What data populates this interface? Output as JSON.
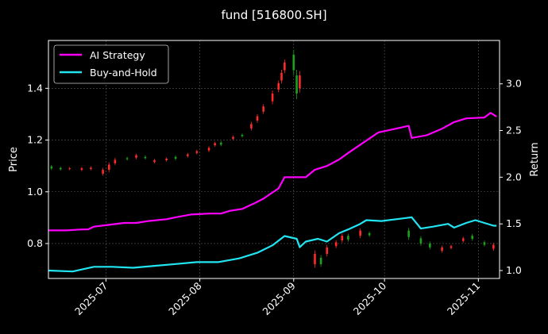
{
  "chart_data": {
    "type": "line",
    "title": "fund [516800.SH]",
    "ylabel_left": "Price",
    "ylabel_right": "Return",
    "xlabel": "",
    "x_range": [
      "2025-06-12",
      "2025-11-08"
    ],
    "ylim_left": [
      0.665,
      1.585
    ],
    "ylim_right": [
      0.915,
      3.465
    ],
    "x_ticks": [
      "2025-07",
      "2025-08",
      "2025-09",
      "2025-10",
      "2025-11"
    ],
    "y_ticks_left": [
      "0.8",
      "1.0",
      "1.2",
      "1.4"
    ],
    "y_ticks_right": [
      "1.0",
      "1.5",
      "2.0",
      "2.5",
      "3.0"
    ],
    "grid": true,
    "legend_position": "top-left",
    "colors": {
      "ai": "#ff00ff",
      "bh": "#22e5f2",
      "up": "#ff2a2a",
      "down": "#1aa31a"
    },
    "series": [
      {
        "name": "AI Strategy",
        "axis": "right",
        "points": [
          [
            "2025-06-12",
            1.43
          ],
          [
            "2025-06-18",
            1.43
          ],
          [
            "2025-06-23",
            1.44
          ],
          [
            "2025-06-25",
            1.44
          ],
          [
            "2025-06-27",
            1.47
          ],
          [
            "2025-07-02",
            1.49
          ],
          [
            "2025-07-07",
            1.51
          ],
          [
            "2025-07-11",
            1.51
          ],
          [
            "2025-07-15",
            1.53
          ],
          [
            "2025-07-21",
            1.55
          ],
          [
            "2025-07-24",
            1.57
          ],
          [
            "2025-07-29",
            1.6
          ],
          [
            "2025-08-04",
            1.61
          ],
          [
            "2025-08-08",
            1.61
          ],
          [
            "2025-08-11",
            1.64
          ],
          [
            "2025-08-15",
            1.66
          ],
          [
            "2025-08-19",
            1.72
          ],
          [
            "2025-08-22",
            1.77
          ],
          [
            "2025-08-27",
            1.88
          ],
          [
            "2025-08-29",
            2.0
          ],
          [
            "2025-09-01",
            2.0
          ],
          [
            "2025-09-05",
            2.0
          ],
          [
            "2025-09-08",
            2.08
          ],
          [
            "2025-09-12",
            2.12
          ],
          [
            "2025-09-16",
            2.19
          ],
          [
            "2025-09-19",
            2.26
          ],
          [
            "2025-09-24",
            2.37
          ],
          [
            "2025-09-29",
            2.48
          ],
          [
            "2025-10-09",
            2.55
          ],
          [
            "2025-10-10",
            2.42
          ],
          [
            "2025-10-15",
            2.45
          ],
          [
            "2025-10-20",
            2.52
          ],
          [
            "2025-10-24",
            2.59
          ],
          [
            "2025-10-28",
            2.63
          ],
          [
            "2025-11-03",
            2.64
          ],
          [
            "2025-11-05",
            2.69
          ],
          [
            "2025-11-07",
            2.65
          ]
        ]
      },
      {
        "name": "Buy-and-Hold",
        "axis": "right",
        "points": [
          [
            "2025-06-12",
            1.0
          ],
          [
            "2025-06-20",
            0.99
          ],
          [
            "2025-06-27",
            1.04
          ],
          [
            "2025-07-03",
            1.04
          ],
          [
            "2025-07-10",
            1.03
          ],
          [
            "2025-07-17",
            1.05
          ],
          [
            "2025-07-24",
            1.07
          ],
          [
            "2025-07-31",
            1.09
          ],
          [
            "2025-08-07",
            1.09
          ],
          [
            "2025-08-14",
            1.13
          ],
          [
            "2025-08-20",
            1.19
          ],
          [
            "2025-08-25",
            1.27
          ],
          [
            "2025-08-29",
            1.37
          ],
          [
            "2025-09-02",
            1.34
          ],
          [
            "2025-09-03",
            1.25
          ],
          [
            "2025-09-05",
            1.31
          ],
          [
            "2025-09-09",
            1.34
          ],
          [
            "2025-09-12",
            1.31
          ],
          [
            "2025-09-16",
            1.4
          ],
          [
            "2025-09-19",
            1.44
          ],
          [
            "2025-09-23",
            1.5
          ],
          [
            "2025-09-25",
            1.54
          ],
          [
            "2025-09-30",
            1.53
          ],
          [
            "2025-10-10",
            1.57
          ],
          [
            "2025-10-13",
            1.45
          ],
          [
            "2025-10-17",
            1.47
          ],
          [
            "2025-10-22",
            1.5
          ],
          [
            "2025-10-24",
            1.46
          ],
          [
            "2025-10-28",
            1.51
          ],
          [
            "2025-10-31",
            1.54
          ],
          [
            "2025-11-03",
            1.51
          ],
          [
            "2025-11-06",
            1.48
          ],
          [
            "2025-11-07",
            1.48
          ]
        ]
      }
    ],
    "candles": [
      [
        "2025-06-13",
        1.098,
        1.09
      ],
      [
        "2025-06-16",
        1.092,
        1.087
      ],
      [
        "2025-06-19",
        1.088,
        1.091
      ],
      [
        "2025-06-23",
        1.085,
        1.091
      ],
      [
        "2025-06-26",
        1.088,
        1.093
      ],
      [
        "2025-06-30",
        1.07,
        1.085
      ],
      [
        "2025-07-02",
        1.085,
        1.105
      ],
      [
        "2025-07-04",
        1.11,
        1.124
      ],
      [
        "2025-07-08",
        1.13,
        1.126
      ],
      [
        "2025-07-11",
        1.132,
        1.141
      ],
      [
        "2025-07-14",
        1.135,
        1.13
      ],
      [
        "2025-07-17",
        1.115,
        1.122
      ],
      [
        "2025-07-21",
        1.122,
        1.128
      ],
      [
        "2025-07-24",
        1.135,
        1.128
      ],
      [
        "2025-07-28",
        1.138,
        1.145
      ],
      [
        "2025-07-31",
        1.15,
        1.157
      ],
      [
        "2025-08-04",
        1.16,
        1.17
      ],
      [
        "2025-08-06",
        1.18,
        1.188
      ],
      [
        "2025-08-08",
        1.19,
        1.182
      ],
      [
        "2025-08-12",
        1.205,
        1.212
      ],
      [
        "2025-08-15",
        1.22,
        1.215
      ],
      [
        "2025-08-18",
        1.245,
        1.262
      ],
      [
        "2025-08-20",
        1.275,
        1.292
      ],
      [
        "2025-08-22",
        1.31,
        1.33
      ],
      [
        "2025-08-25",
        1.35,
        1.38
      ],
      [
        "2025-08-27",
        1.395,
        1.42
      ],
      [
        "2025-08-28",
        1.43,
        1.46
      ],
      [
        "2025-08-29",
        1.47,
        1.5
      ],
      [
        "2025-09-01",
        1.53,
        1.47
      ],
      [
        "2025-09-02",
        1.45,
        1.38
      ],
      [
        "2025-09-03",
        1.4,
        1.45
      ],
      [
        "2025-09-08",
        0.72,
        0.76
      ],
      [
        "2025-09-10",
        0.745,
        0.72
      ],
      [
        "2025-09-12",
        0.76,
        0.785
      ],
      [
        "2025-09-15",
        0.79,
        0.805
      ],
      [
        "2025-09-17",
        0.812,
        0.83
      ],
      [
        "2025-09-19",
        0.83,
        0.815
      ],
      [
        "2025-09-23",
        0.83,
        0.85
      ],
      [
        "2025-09-26",
        0.84,
        0.832
      ],
      [
        "2025-10-09",
        0.85,
        0.825
      ],
      [
        "2025-10-13",
        0.82,
        0.8
      ],
      [
        "2025-10-16",
        0.8,
        0.785
      ],
      [
        "2025-10-20",
        0.772,
        0.785
      ],
      [
        "2025-10-23",
        0.783,
        0.79
      ],
      [
        "2025-10-27",
        0.81,
        0.82
      ],
      [
        "2025-10-30",
        0.83,
        0.818
      ],
      [
        "2025-11-03",
        0.805,
        0.795
      ],
      [
        "2025-11-06",
        0.78,
        0.795
      ]
    ]
  }
}
